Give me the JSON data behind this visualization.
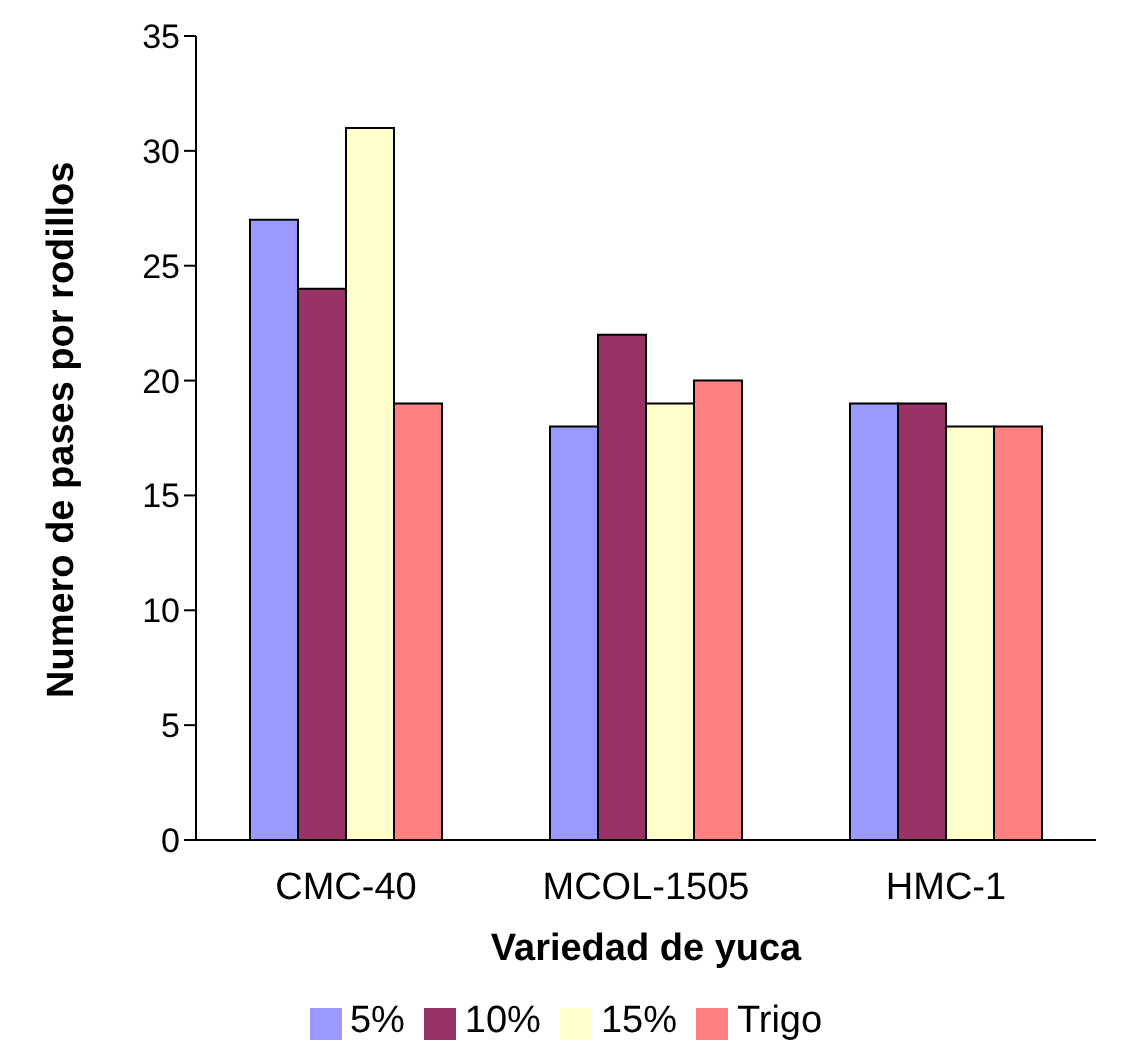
{
  "chart_data": {
    "type": "bar",
    "xlabel": "Variedad de yuca",
    "ylabel": "Numero de pases por rodillos",
    "categories": [
      "CMC-40",
      "MCOL-1505",
      "HMC-1"
    ],
    "series": [
      {
        "name": "5%",
        "color": "#9999ff",
        "values": [
          27,
          18,
          19
        ]
      },
      {
        "name": "10%",
        "color": "#993366",
        "values": [
          24,
          22,
          19
        ]
      },
      {
        "name": "15%",
        "color": "#ffffcc",
        "values": [
          31,
          19,
          18
        ]
      },
      {
        "name": "Trigo",
        "color": "#ff8080",
        "values": [
          19,
          20,
          18
        ]
      }
    ],
    "ylim": [
      0,
      35
    ],
    "yticks": [
      0,
      5,
      10,
      15,
      20,
      25,
      30,
      35
    ],
    "grid": false,
    "legend": "bottom"
  }
}
